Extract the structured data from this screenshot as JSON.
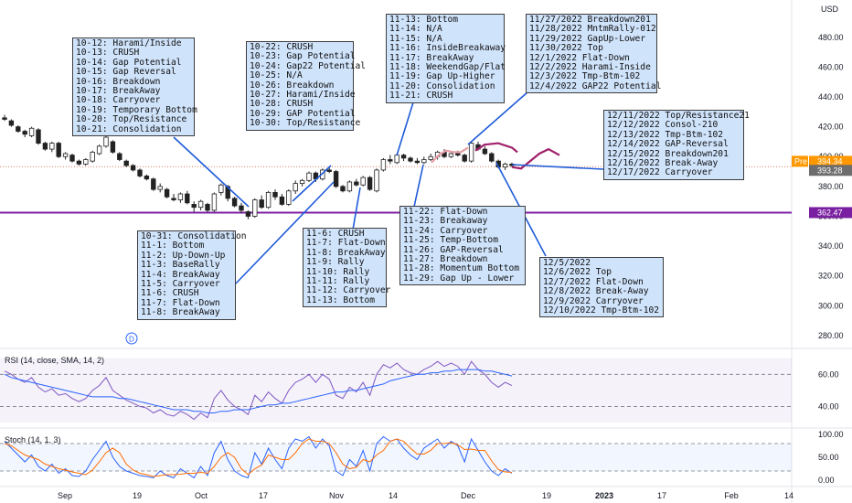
{
  "chart_data": {
    "type": "candlestick",
    "currency_label": "USD",
    "price_axis": {
      "ticks": [
        "480.00",
        "460.00",
        "440.00",
        "420.00",
        "400.00",
        "380.00",
        "360.00",
        "340.00",
        "320.00",
        "300.00",
        "280.00"
      ],
      "range": [
        272,
        505
      ]
    },
    "price_tags": [
      {
        "label": "Pre",
        "value": "394.34",
        "bg": "#ff9800"
      },
      {
        "label": "",
        "value": "393.28",
        "bg": "#6d6d6d"
      },
      {
        "label": "",
        "value": "362.47",
        "bg": "#7b1fa2"
      }
    ],
    "horizontal_line": {
      "value": 362.47,
      "color": "#7b1fa2"
    },
    "dotted_line": {
      "value": 393.28,
      "color": "#e07a5f"
    },
    "x_labels": [
      "Sep",
      "19",
      "Oct",
      "17",
      "Nov",
      "14",
      "Dec",
      "19",
      "2023",
      "17",
      "Feb",
      "14"
    ],
    "candles": [
      {
        "o": 426,
        "h": 428,
        "l": 424,
        "c": 425
      },
      {
        "o": 424,
        "h": 425,
        "l": 420,
        "c": 421
      },
      {
        "o": 420,
        "h": 421,
        "l": 416,
        "c": 417
      },
      {
        "o": 417,
        "h": 418,
        "l": 413,
        "c": 415
      },
      {
        "o": 414,
        "h": 420,
        "l": 413,
        "c": 419
      },
      {
        "o": 418,
        "h": 419,
        "l": 408,
        "c": 409
      },
      {
        "o": 409,
        "h": 410,
        "l": 404,
        "c": 405
      },
      {
        "o": 405,
        "h": 410,
        "l": 403,
        "c": 409
      },
      {
        "o": 409,
        "h": 410,
        "l": 399,
        "c": 400
      },
      {
        "o": 400,
        "h": 403,
        "l": 398,
        "c": 402
      },
      {
        "o": 401,
        "h": 402,
        "l": 396,
        "c": 397
      },
      {
        "o": 397,
        "h": 398,
        "l": 394,
        "c": 395
      },
      {
        "o": 395,
        "h": 399,
        "l": 394,
        "c": 398
      },
      {
        "o": 397,
        "h": 404,
        "l": 396,
        "c": 403
      },
      {
        "o": 402,
        "h": 408,
        "l": 401,
        "c": 407
      },
      {
        "o": 407,
        "h": 414,
        "l": 406,
        "c": 413
      },
      {
        "o": 410,
        "h": 411,
        "l": 402,
        "c": 403
      },
      {
        "o": 402,
        "h": 403,
        "l": 397,
        "c": 398
      },
      {
        "o": 397,
        "h": 398,
        "l": 393,
        "c": 394
      },
      {
        "o": 394,
        "h": 395,
        "l": 390,
        "c": 391
      },
      {
        "o": 391,
        "h": 392,
        "l": 386,
        "c": 387
      },
      {
        "o": 387,
        "h": 388,
        "l": 384,
        "c": 385
      },
      {
        "o": 385,
        "h": 386,
        "l": 377,
        "c": 378
      },
      {
        "o": 378,
        "h": 382,
        "l": 376,
        "c": 380
      },
      {
        "o": 378,
        "h": 379,
        "l": 372,
        "c": 373
      },
      {
        "o": 372,
        "h": 375,
        "l": 370,
        "c": 371
      },
      {
        "o": 371,
        "h": 376,
        "l": 369,
        "c": 375
      },
      {
        "o": 375,
        "h": 377,
        "l": 368,
        "c": 369
      },
      {
        "o": 368,
        "h": 370,
        "l": 363,
        "c": 366
      },
      {
        "o": 366,
        "h": 371,
        "l": 364,
        "c": 370
      },
      {
        "o": 368,
        "h": 369,
        "l": 363,
        "c": 364
      },
      {
        "o": 364,
        "h": 376,
        "l": 363,
        "c": 375
      },
      {
        "o": 376,
        "h": 382,
        "l": 374,
        "c": 381
      },
      {
        "o": 380,
        "h": 381,
        "l": 370,
        "c": 372
      },
      {
        "o": 372,
        "h": 373,
        "l": 366,
        "c": 367
      },
      {
        "o": 367,
        "h": 369,
        "l": 362,
        "c": 364
      },
      {
        "o": 363,
        "h": 364,
        "l": 358,
        "c": 360
      },
      {
        "o": 360,
        "h": 372,
        "l": 359,
        "c": 371
      },
      {
        "o": 371,
        "h": 374,
        "l": 365,
        "c": 366
      },
      {
        "o": 366,
        "h": 377,
        "l": 365,
        "c": 376
      },
      {
        "o": 376,
        "h": 378,
        "l": 371,
        "c": 373
      },
      {
        "o": 373,
        "h": 375,
        "l": 367,
        "c": 368
      },
      {
        "o": 368,
        "h": 378,
        "l": 367,
        "c": 377
      },
      {
        "o": 377,
        "h": 384,
        "l": 375,
        "c": 382
      },
      {
        "o": 382,
        "h": 385,
        "l": 380,
        "c": 384
      },
      {
        "o": 384,
        "h": 390,
        "l": 383,
        "c": 389
      },
      {
        "o": 389,
        "h": 390,
        "l": 383,
        "c": 385
      },
      {
        "o": 385,
        "h": 392,
        "l": 384,
        "c": 391
      },
      {
        "o": 391,
        "h": 393,
        "l": 389,
        "c": 390
      },
      {
        "o": 390,
        "h": 391,
        "l": 379,
        "c": 380
      },
      {
        "o": 380,
        "h": 381,
        "l": 376,
        "c": 377
      },
      {
        "o": 377,
        "h": 384,
        "l": 376,
        "c": 383
      },
      {
        "o": 383,
        "h": 385,
        "l": 380,
        "c": 381
      },
      {
        "o": 381,
        "h": 387,
        "l": 380,
        "c": 386
      },
      {
        "o": 386,
        "h": 387,
        "l": 377,
        "c": 378
      },
      {
        "o": 377,
        "h": 392,
        "l": 376,
        "c": 391
      },
      {
        "o": 391,
        "h": 399,
        "l": 390,
        "c": 398
      },
      {
        "o": 398,
        "h": 401,
        "l": 395,
        "c": 397
      },
      {
        "o": 396,
        "h": 402,
        "l": 395,
        "c": 401
      },
      {
        "o": 401,
        "h": 402,
        "l": 397,
        "c": 399
      },
      {
        "o": 399,
        "h": 400,
        "l": 396,
        "c": 397
      },
      {
        "o": 397,
        "h": 399,
        "l": 395,
        "c": 396
      },
      {
        "o": 396,
        "h": 400,
        "l": 395,
        "c": 398
      },
      {
        "o": 398,
        "h": 402,
        "l": 397,
        "c": 400
      },
      {
        "o": 400,
        "h": 404,
        "l": 398,
        "c": 403
      },
      {
        "o": 403,
        "h": 405,
        "l": 399,
        "c": 400
      },
      {
        "o": 400,
        "h": 403,
        "l": 399,
        "c": 402
      },
      {
        "o": 402,
        "h": 404,
        "l": 400,
        "c": 401
      },
      {
        "o": 401,
        "h": 402,
        "l": 396,
        "c": 397
      },
      {
        "o": 397,
        "h": 410,
        "l": 396,
        "c": 409
      },
      {
        "o": 408,
        "h": 410,
        "l": 404,
        "c": 405
      },
      {
        "o": 405,
        "h": 407,
        "l": 401,
        "c": 402
      },
      {
        "o": 402,
        "h": 403,
        "l": 396,
        "c": 397
      },
      {
        "o": 397,
        "h": 398,
        "l": 392,
        "c": 393
      },
      {
        "o": 393,
        "h": 396,
        "l": 391,
        "c": 395
      },
      {
        "o": 395,
        "h": 396,
        "l": 393,
        "c": 394
      }
    ],
    "projection_paths": [
      {
        "color": "#e8a0a8",
        "points": [
          [
            472,
            396
          ],
          [
            480,
            401
          ],
          [
            488,
            404
          ],
          [
            496,
            403
          ],
          [
            504,
            403
          ],
          [
            512,
            406
          ]
        ]
      },
      {
        "color": "#a0206a",
        "points": [
          [
            520,
            404
          ],
          [
            530,
            408
          ],
          [
            545,
            409
          ],
          [
            560,
            406
          ],
          [
            566,
            403
          ]
        ]
      },
      {
        "color": "#a0206a",
        "points": [
          [
            560,
            393
          ],
          [
            570,
            392
          ],
          [
            580,
            397
          ],
          [
            590,
            402
          ],
          [
            600,
            405
          ],
          [
            612,
            401
          ]
        ]
      }
    ],
    "annotations": [
      {
        "lines": [
          "10-12: Harami/Inside",
          "10-13: CRUSH",
          "10-14: Gap Potential",
          "10-15: Gap Reversal",
          "10-16: Breakdown",
          "10-17: BreakAway",
          "10-18: Carryover",
          "10-19: Temporary Bottom",
          "10-20: Top/Resistance",
          "10-21: Consolidation"
        ]
      },
      {
        "lines": [
          "10-22: CRUSH",
          "10-23: Gap Potential",
          "10-24: Gap22 Potential",
          "10-25: N/A",
          "10-26: Breakdown",
          "10-27: Harami/Inside",
          "10-28: CRUSH",
          "10-29: GAP Potential",
          "10-30: Top/Resistance"
        ]
      },
      {
        "lines": [
          "11-13: Bottom",
          "11-14: N/A",
          "11-15: N/A",
          "11-16: InsideBreakaway",
          "11-17: BreakAway",
          "11-18: WeekendGap/Flat",
          "11-19: Gap Up-Higher",
          "11-20: Consolidation",
          "11-21: CRUSH"
        ]
      },
      {
        "lines": [
          "11/27/2022 Breakdown201",
          "11/28/2022 MntmRally-012",
          "11/29/2022 GapUp-Lower",
          "11/30/2022 Top",
          "12/1/2022 Flat-Down",
          "12/2/2022 Harami-Inside",
          "12/3/2022 Tmp-Btm-102",
          "12/4/2022 GAP22 Potential"
        ]
      },
      {
        "lines": [
          "12/11/2022 Top/Resistance21",
          "12/12/2022 Consol-210",
          "12/13/2022 Tmp-Btm-102",
          "12/14/2022 GAP-Reversal",
          "12/15/2022 Breakdown201",
          "12/16/2022 Break-Away",
          "12/17/2022 Carryover"
        ]
      },
      {
        "lines": [
          "10-31: Consolidation",
          "11-1: Bottom",
          "11-2: Up-Down-Up",
          "11-3: BaseRally",
          "11-4: BreakAway",
          "11-5: Carryover",
          "11-6: CRUSH",
          "11-7: Flat-Down",
          "11-8: BreakAway"
        ]
      },
      {
        "lines": [
          "11-6: CRUSH",
          "11-7: Flat-Down",
          "11-8: BreakAway",
          "11-9: Rally",
          "11-10: Rally",
          "11-11: Rally",
          "11-12: Carryover",
          "11-13: Bottom"
        ]
      },
      {
        "lines": [
          "11-22: Flat-Down",
          "11-23: Breakaway",
          "11-24: Carryover",
          "11-25: Temp-Bottom",
          "11-26: GAP-Reversal",
          "11-27: Breakdown",
          "11-28: Momentum Bottom",
          "11-29: Gap Up - Lower"
        ]
      },
      {
        "lines": [
          "12/5/2022",
          "12/6/2022 Top",
          "12/7/2022 Flat-Down",
          "12/8/2022 Break-Away",
          "12/9/2022 Carryover",
          "12/10/2022 Tmp-Btm-102"
        ]
      }
    ],
    "rsi": {
      "title": "RSI (14, close, SMA, 14, 2)",
      "ticks": [
        "60.00",
        "40.00"
      ],
      "range": [
        30,
        75
      ],
      "band": [
        30,
        70
      ],
      "rsi_values": [
        62,
        60,
        57,
        55,
        58,
        52,
        49,
        51,
        47,
        48,
        45,
        43,
        45,
        50,
        53,
        58,
        50,
        47,
        44,
        42,
        40,
        39,
        36,
        38,
        35,
        34,
        37,
        35,
        32,
        36,
        33,
        45,
        50,
        44,
        40,
        38,
        35,
        47,
        43,
        49,
        45,
        42,
        50,
        55,
        57,
        60,
        55,
        60,
        57,
        47,
        45,
        52,
        49,
        55,
        47,
        60,
        66,
        64,
        67,
        63,
        61,
        60,
        63,
        65,
        68,
        65,
        67,
        65,
        60,
        68,
        63,
        60,
        55,
        52,
        55,
        53
      ],
      "sma_values": [
        60,
        58,
        57,
        56,
        55,
        54,
        53,
        52,
        51,
        50,
        49,
        48,
        47,
        46,
        46,
        46,
        46,
        45,
        45,
        44,
        43,
        42,
        41,
        40,
        39,
        38,
        38,
        38,
        37,
        37,
        36,
        36,
        37,
        37,
        38,
        38,
        38,
        39,
        40,
        41,
        41,
        42,
        42,
        43,
        44,
        45,
        46,
        47,
        48,
        49,
        49,
        50,
        50,
        51,
        52,
        53,
        54,
        56,
        57,
        58,
        59,
        60,
        60,
        61,
        61,
        62,
        62,
        63,
        63,
        63,
        63,
        62,
        62,
        61,
        60,
        59
      ]
    },
    "stoch": {
      "title": "Stoch (14, 1, 3)",
      "ticks": [
        "100.00",
        "50.00",
        "0.00"
      ],
      "range": [
        -10,
        110
      ],
      "band": [
        20,
        80
      ],
      "k_values": [
        85,
        70,
        55,
        40,
        55,
        30,
        20,
        35,
        15,
        25,
        10,
        8,
        20,
        45,
        65,
        85,
        50,
        30,
        20,
        15,
        10,
        8,
        5,
        20,
        10,
        5,
        25,
        15,
        5,
        30,
        10,
        60,
        85,
        45,
        20,
        10,
        5,
        60,
        35,
        70,
        45,
        25,
        70,
        90,
        85,
        95,
        70,
        90,
        75,
        20,
        10,
        45,
        30,
        65,
        20,
        80,
        95,
        85,
        90,
        70,
        55,
        45,
        70,
        80,
        90,
        70,
        85,
        75,
        40,
        90,
        65,
        40,
        20,
        10,
        25,
        15
      ],
      "d_values": [
        80,
        75,
        65,
        55,
        50,
        45,
        35,
        30,
        25,
        22,
        18,
        15,
        12,
        22,
        40,
        60,
        70,
        60,
        35,
        22,
        15,
        12,
        8,
        10,
        12,
        12,
        13,
        15,
        15,
        17,
        15,
        30,
        50,
        60,
        50,
        25,
        12,
        25,
        33,
        55,
        50,
        45,
        45,
        60,
        80,
        90,
        85,
        85,
        80,
        60,
        35,
        25,
        28,
        45,
        40,
        55,
        65,
        85,
        90,
        85,
        70,
        57,
        57,
        65,
        80,
        80,
        82,
        77,
        67,
        68,
        65,
        65,
        42,
        23,
        18,
        17
      ]
    }
  }
}
